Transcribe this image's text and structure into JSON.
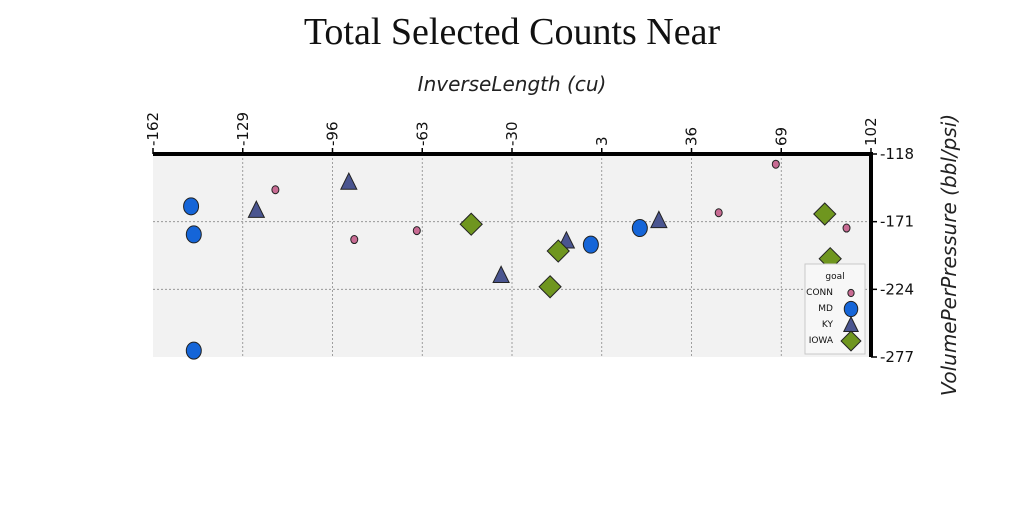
{
  "chart_data": {
    "type": "scatter",
    "title": "Total Selected Counts Near",
    "xlabel": "InverseLength (cu)",
    "ylabel": "VolumePerPressure (bbl/psi)",
    "x_ticks": [
      "-162",
      "-129",
      "-96",
      "-63",
      "-30",
      "3",
      "36",
      "69",
      "102"
    ],
    "y_ticks": [
      "-118",
      "-171",
      "-224",
      "-277"
    ],
    "xlim": [
      -162,
      102
    ],
    "ylim": [
      -277,
      -118
    ],
    "x_axis_position": "top",
    "y_axis_position": "right",
    "grid": true,
    "legend": {
      "title": "goal",
      "placement": "bottom-right"
    },
    "series": [
      {
        "name": "CONN",
        "marker": "circle-small",
        "color": "#c86b93",
        "points": [
          [
            -117,
            -146
          ],
          [
            -88,
            -185
          ],
          [
            -65,
            -178
          ],
          [
            67,
            -126
          ],
          [
            46,
            -164
          ],
          [
            93,
            -176
          ]
        ]
      },
      {
        "name": "MD",
        "marker": "circle",
        "color": "#1565d8",
        "points": [
          [
            -148,
            -159
          ],
          [
            -147,
            -181
          ],
          [
            -147,
            -272
          ],
          [
            -1,
            -189
          ],
          [
            17,
            -176
          ]
        ]
      },
      {
        "name": "KY",
        "marker": "triangle",
        "color": "#4a5590",
        "points": [
          [
            -90,
            -140
          ],
          [
            -124,
            -162
          ],
          [
            -34,
            -213
          ],
          [
            -10,
            -186
          ],
          [
            24,
            -170
          ]
        ]
      },
      {
        "name": "IOWA",
        "marker": "diamond",
        "color": "#6f961f",
        "points": [
          [
            -45,
            -173
          ],
          [
            -13,
            -194
          ],
          [
            -16,
            -222
          ],
          [
            85,
            -165
          ],
          [
            87,
            -200
          ]
        ]
      }
    ]
  }
}
